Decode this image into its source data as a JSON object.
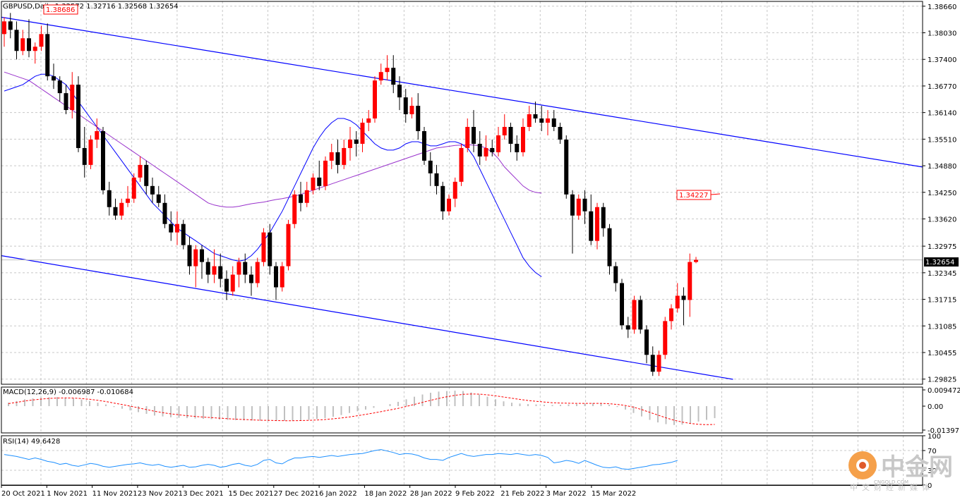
{
  "chart_data": [
    {
      "type": "candlestick",
      "title": "GBPUSD,Daily",
      "ohlc_readout": "1.32572 1.32716 1.32568 1.32654",
      "top_left_tag": "1.38686",
      "current_price_label": "1.32654",
      "ma_price_label": "1.34227",
      "ylim": [
        1.2982,
        1.3869
      ],
      "y_ticks": [
        "1.38660",
        "1.38030",
        "1.37400",
        "1.36770",
        "1.36140",
        "1.35510",
        "1.34880",
        "1.34250",
        "1.33620",
        "1.32975",
        "1.32345",
        "1.31715",
        "1.31085",
        "1.30455",
        "1.29825"
      ],
      "x_ticks": [
        "20 Oct 2021",
        "1 Nov 2021",
        "11 Nov 2021",
        "23 Nov 2021",
        "3 Dec 2021",
        "15 Dec 2021",
        "27 Dec 2021",
        "6 Jan 2022",
        "18 Jan 2022",
        "28 Jan 2022",
        "9 Feb 2022",
        "21 Feb 2022",
        "3 Mar 2022",
        "15 Mar 2022"
      ],
      "candles": [
        [
          1.38,
          1.384,
          1.377,
          1.383
        ],
        [
          1.383,
          1.385,
          1.379,
          1.381
        ],
        [
          1.381,
          1.383,
          1.374,
          1.376
        ],
        [
          1.376,
          1.381,
          1.375,
          1.379
        ],
        [
          1.379,
          1.3835,
          1.3745,
          1.376
        ],
        [
          1.376,
          1.378,
          1.373,
          1.377
        ],
        [
          1.377,
          1.382,
          1.376,
          1.38
        ],
        [
          1.38,
          1.3825,
          1.369,
          1.37
        ],
        [
          1.37,
          1.373,
          1.367,
          1.369
        ],
        [
          1.369,
          1.37,
          1.364,
          1.366
        ],
        [
          1.366,
          1.368,
          1.361,
          1.362
        ],
        [
          1.362,
          1.371,
          1.36,
          1.368
        ],
        [
          1.368,
          1.37,
          1.352,
          1.353
        ],
        [
          1.353,
          1.358,
          1.346,
          1.349
        ],
        [
          1.349,
          1.356,
          1.348,
          1.355
        ],
        [
          1.355,
          1.36,
          1.353,
          1.357
        ],
        [
          1.357,
          1.358,
          1.342,
          1.343
        ],
        [
          1.343,
          1.345,
          1.337,
          1.339
        ],
        [
          1.339,
          1.341,
          1.336,
          1.337
        ],
        [
          1.337,
          1.341,
          1.336,
          1.34
        ],
        [
          1.34,
          1.344,
          1.339,
          1.341
        ],
        [
          1.341,
          1.347,
          1.34,
          1.346
        ],
        [
          1.346,
          1.351,
          1.345,
          1.349
        ],
        [
          1.349,
          1.35,
          1.342,
          1.344
        ],
        [
          1.344,
          1.346,
          1.34,
          1.342
        ],
        [
          1.342,
          1.344,
          1.339,
          1.34
        ],
        [
          1.34,
          1.342,
          1.334,
          1.335
        ],
        [
          1.335,
          1.338,
          1.331,
          1.333
        ],
        [
          1.333,
          1.338,
          1.33,
          1.335
        ],
        [
          1.335,
          1.336,
          1.329,
          1.33
        ],
        [
          1.33,
          1.332,
          1.323,
          1.325
        ],
        [
          1.325,
          1.33,
          1.32,
          1.329
        ],
        [
          1.329,
          1.33,
          1.322,
          1.326
        ],
        [
          1.326,
          1.327,
          1.321,
          1.323
        ],
        [
          1.323,
          1.329,
          1.321,
          1.325
        ],
        [
          1.325,
          1.328,
          1.32,
          1.322
        ],
        [
          1.322,
          1.324,
          1.317,
          1.319
        ],
        [
          1.319,
          1.325,
          1.318,
          1.323
        ],
        [
          1.323,
          1.327,
          1.32,
          1.326
        ],
        [
          1.326,
          1.328,
          1.321,
          1.323
        ],
        [
          1.323,
          1.325,
          1.318,
          1.321
        ],
        [
          1.321,
          1.327,
          1.32,
          1.326
        ],
        [
          1.326,
          1.334,
          1.325,
          1.333
        ],
        [
          1.333,
          1.335,
          1.323,
          1.325
        ],
        [
          1.325,
          1.326,
          1.317,
          1.32
        ],
        [
          1.32,
          1.326,
          1.319,
          1.325
        ],
        [
          1.325,
          1.336,
          1.324,
          1.335
        ],
        [
          1.335,
          1.343,
          1.334,
          1.342
        ],
        [
          1.342,
          1.345,
          1.338,
          1.34
        ],
        [
          1.34,
          1.345,
          1.339,
          1.343
        ],
        [
          1.343,
          1.347,
          1.342,
          1.346
        ],
        [
          1.346,
          1.35,
          1.343,
          1.344
        ],
        [
          1.344,
          1.351,
          1.343,
          1.35
        ],
        [
          1.35,
          1.354,
          1.348,
          1.352
        ],
        [
          1.352,
          1.355,
          1.347,
          1.349
        ],
        [
          1.349,
          1.355,
          1.348,
          1.353
        ],
        [
          1.353,
          1.358,
          1.35,
          1.355
        ],
        [
          1.355,
          1.357,
          1.351,
          1.354
        ],
        [
          1.354,
          1.36,
          1.352,
          1.359
        ],
        [
          1.359,
          1.362,
          1.357,
          1.36
        ],
        [
          1.36,
          1.37,
          1.359,
          1.369
        ],
        [
          1.369,
          1.373,
          1.368,
          1.371
        ],
        [
          1.371,
          1.375,
          1.369,
          1.372
        ],
        [
          1.372,
          1.375,
          1.366,
          1.368
        ],
        [
          1.368,
          1.37,
          1.362,
          1.365
        ],
        [
          1.365,
          1.367,
          1.359,
          1.361
        ],
        [
          1.361,
          1.365,
          1.36,
          1.363
        ],
        [
          1.363,
          1.366,
          1.355,
          1.357
        ],
        [
          1.357,
          1.358,
          1.349,
          1.35
        ],
        [
          1.35,
          1.352,
          1.344,
          1.347
        ],
        [
          1.347,
          1.349,
          1.342,
          1.344
        ],
        [
          1.344,
          1.345,
          1.336,
          1.338
        ],
        [
          1.338,
          1.342,
          1.337,
          1.341
        ],
        [
          1.341,
          1.346,
          1.339,
          1.345
        ],
        [
          1.345,
          1.354,
          1.344,
          1.353
        ],
        [
          1.353,
          1.36,
          1.352,
          1.358
        ],
        [
          1.358,
          1.362,
          1.352,
          1.354
        ],
        [
          1.354,
          1.357,
          1.349,
          1.351
        ],
        [
          1.351,
          1.356,
          1.35,
          1.353
        ],
        [
          1.353,
          1.355,
          1.351,
          1.352
        ],
        [
          1.352,
          1.358,
          1.351,
          1.356
        ],
        [
          1.356,
          1.361,
          1.355,
          1.358
        ],
        [
          1.358,
          1.359,
          1.352,
          1.354
        ],
        [
          1.354,
          1.356,
          1.35,
          1.352
        ],
        [
          1.352,
          1.36,
          1.351,
          1.358
        ],
        [
          1.358,
          1.363,
          1.357,
          1.361
        ],
        [
          1.361,
          1.364,
          1.359,
          1.36
        ],
        [
          1.36,
          1.363,
          1.357,
          1.359
        ],
        [
          1.359,
          1.362,
          1.356,
          1.36
        ],
        [
          1.36,
          1.362,
          1.357,
          1.358
        ],
        [
          1.358,
          1.359,
          1.354,
          1.355
        ],
        [
          1.355,
          1.356,
          1.341,
          1.342
        ],
        [
          1.342,
          1.343,
          1.328,
          1.337
        ],
        [
          1.337,
          1.342,
          1.336,
          1.341
        ],
        [
          1.341,
          1.343,
          1.335,
          1.338
        ],
        [
          1.338,
          1.342,
          1.33,
          1.331
        ],
        [
          1.331,
          1.34,
          1.329,
          1.339
        ],
        [
          1.339,
          1.34,
          1.332,
          1.334
        ],
        [
          1.334,
          1.335,
          1.323,
          1.325
        ],
        [
          1.325,
          1.326,
          1.319,
          1.321
        ],
        [
          1.321,
          1.322,
          1.31,
          1.311
        ],
        [
          1.311,
          1.313,
          1.308,
          1.31
        ],
        [
          1.31,
          1.318,
          1.309,
          1.317
        ],
        [
          1.317,
          1.318,
          1.309,
          1.31
        ],
        [
          1.31,
          1.311,
          1.302,
          1.304
        ],
        [
          1.304,
          1.306,
          1.299,
          1.3
        ],
        [
          1.3,
          1.305,
          1.299,
          1.304
        ],
        [
          1.304,
          1.313,
          1.303,
          1.312
        ],
        [
          1.312,
          1.316,
          1.31,
          1.315
        ],
        [
          1.315,
          1.321,
          1.314,
          1.318
        ],
        [
          1.318,
          1.32,
          1.311,
          1.317
        ],
        [
          1.317,
          1.328,
          1.313,
          1.326
        ],
        [
          1.326,
          1.3272,
          1.3257,
          1.3265
        ]
      ],
      "ma_fast": [
        1.3665,
        1.367,
        1.3675,
        1.368,
        1.369,
        1.37,
        1.3705,
        1.3705,
        1.37,
        1.369,
        1.368,
        1.366,
        1.364,
        1.362,
        1.36,
        1.358,
        1.356,
        1.354,
        1.352,
        1.35,
        1.348,
        1.346,
        1.344,
        1.342,
        1.34,
        1.3385,
        1.337,
        1.3355,
        1.334,
        1.333,
        1.332,
        1.331,
        1.33,
        1.329,
        1.328,
        1.3275,
        1.327,
        1.3265,
        1.3262,
        1.3265,
        1.3275,
        1.329,
        1.331,
        1.333,
        1.3355,
        1.338,
        1.341,
        1.344,
        1.347,
        1.35,
        1.353,
        1.3555,
        1.3575,
        1.359,
        1.36,
        1.36,
        1.3595,
        1.3585,
        1.357,
        1.3555,
        1.354,
        1.353,
        1.3525,
        1.3525,
        1.353,
        1.354,
        1.3545,
        1.3545,
        1.354,
        1.3535,
        1.3535,
        1.354,
        1.3545,
        1.3545,
        1.354,
        1.353,
        1.351,
        1.348,
        1.345,
        1.342,
        1.339,
        1.336,
        1.333,
        1.33,
        1.327,
        1.325,
        1.3235,
        1.3225
      ],
      "ma_slow": [
        1.371,
        1.3705,
        1.37,
        1.3695,
        1.369,
        1.368,
        1.367,
        1.366,
        1.365,
        1.364,
        1.363,
        1.362,
        1.361,
        1.36,
        1.359,
        1.358,
        1.357,
        1.356,
        1.355,
        1.354,
        1.353,
        1.352,
        1.351,
        1.35,
        1.349,
        1.348,
        1.347,
        1.346,
        1.345,
        1.344,
        1.343,
        1.342,
        1.341,
        1.34,
        1.3395,
        1.3392,
        1.339,
        1.339,
        1.3392,
        1.3395,
        1.3398,
        1.34,
        1.3402,
        1.3405,
        1.3408,
        1.341,
        1.3413,
        1.3416,
        1.342,
        1.3425,
        1.343,
        1.3435,
        1.344,
        1.3445,
        1.345,
        1.3455,
        1.346,
        1.3465,
        1.347,
        1.3475,
        1.348,
        1.3485,
        1.349,
        1.3495,
        1.35,
        1.3505,
        1.351,
        1.3515,
        1.352,
        1.3525,
        1.353,
        1.3532,
        1.3534,
        1.3536,
        1.3537,
        1.3538,
        1.3537,
        1.3535,
        1.353,
        1.352,
        1.3505,
        1.3485,
        1.347,
        1.3455,
        1.344,
        1.343,
        1.3425,
        1.3423
      ],
      "colors": {
        "bull": "#ff0000",
        "bear": "#000000",
        "ma_fast": "#0000ff",
        "ma_slow": "#9932cc",
        "channel": "#0000ff",
        "bid_line": "#c0c0c0"
      }
    },
    {
      "type": "histogram",
      "label": "MACD(12,26,9) -0.006987 -0.010684",
      "ylim": [
        -0.01397,
        0.009472
      ],
      "y_ticks": [
        "0.009472",
        "0.00",
        "-0.01397"
      ],
      "histogram": [
        0.002,
        0.003,
        0.004,
        0.0045,
        0.005,
        0.0052,
        0.0053,
        0.005,
        0.0045,
        0.0038,
        0.003,
        0.002,
        0.001,
        -0.0005,
        -0.0015,
        -0.0025,
        -0.0035,
        -0.0045,
        -0.0055,
        -0.006,
        -0.0065,
        -0.0068,
        -0.007,
        -0.0072,
        -0.0074,
        -0.0076,
        -0.0078,
        -0.008,
        -0.0082,
        -0.0083,
        -0.0084,
        -0.0085,
        -0.0086,
        -0.0087,
        -0.0086,
        -0.0085,
        -0.0083,
        -0.008,
        -0.0075,
        -0.007,
        -0.0062,
        -0.0052,
        -0.004,
        -0.003,
        -0.002,
        -0.001,
        0.0,
        0.0012,
        0.0025,
        0.004,
        0.0055,
        0.0068,
        0.0078,
        0.0085,
        0.0088,
        0.009,
        0.0088,
        0.008,
        0.0068,
        0.0055,
        0.004,
        0.0028,
        0.002,
        0.0015,
        0.0012,
        0.001,
        0.0008,
        0.0007,
        0.0008,
        0.001,
        0.0012,
        0.0015,
        0.0018,
        0.0015,
        0.0008,
        -0.0005,
        -0.002,
        -0.004,
        -0.006,
        -0.008,
        -0.0095,
        -0.0105,
        -0.011,
        -0.0108,
        -0.01,
        -0.009,
        -0.008,
        -0.007
      ],
      "signal": [
        0.0015,
        0.0022,
        0.003,
        0.0036,
        0.0041,
        0.0045,
        0.0047,
        0.0048,
        0.0047,
        0.0044,
        0.004,
        0.0034,
        0.0027,
        0.0018,
        0.0009,
        0.0,
        -0.001,
        -0.002,
        -0.003,
        -0.0038,
        -0.0045,
        -0.0051,
        -0.0056,
        -0.006,
        -0.0064,
        -0.0067,
        -0.007,
        -0.0073,
        -0.0076,
        -0.0078,
        -0.008,
        -0.0082,
        -0.0083,
        -0.0084,
        -0.0085,
        -0.0085,
        -0.0084,
        -0.0083,
        -0.0081,
        -0.0078,
        -0.0074,
        -0.0069,
        -0.0063,
        -0.0056,
        -0.0048,
        -0.004,
        -0.0031,
        -0.0022,
        -0.0013,
        -0.0002,
        0.001,
        0.0022,
        0.0034,
        0.0045,
        0.0055,
        0.0063,
        0.0069,
        0.0071,
        0.007,
        0.0066,
        0.006,
        0.0053,
        0.0046,
        0.0039,
        0.0033,
        0.0028,
        0.0024,
        0.002,
        0.0018,
        0.0017,
        0.0016,
        0.0016,
        0.0016,
        0.0016,
        0.0014,
        0.001,
        0.0004,
        -0.0006,
        -0.002,
        -0.0036,
        -0.0052,
        -0.0068,
        -0.0082,
        -0.0093,
        -0.0101,
        -0.0106,
        -0.0108,
        -0.0107
      ],
      "colors": {
        "histogram": "#c0c0c0",
        "signal": "#ff0000"
      }
    },
    {
      "type": "line",
      "label": "RSI(14) 49.6428",
      "ylim": [
        0,
        100
      ],
      "y_ticks": [
        "100",
        "70",
        "30",
        "0"
      ],
      "rsi": [
        62,
        60,
        58,
        55,
        52,
        55,
        52,
        48,
        46,
        42,
        44,
        40,
        38,
        41,
        44,
        42,
        38,
        36,
        38,
        40,
        42,
        43,
        45,
        42,
        40,
        42,
        38,
        36,
        38,
        40,
        36,
        37,
        40,
        42,
        40,
        36,
        38,
        42,
        44,
        40,
        38,
        42,
        50,
        52,
        45,
        43,
        50,
        55,
        55,
        57,
        58,
        56,
        58,
        60,
        58,
        60,
        62,
        63,
        64,
        67,
        70,
        72,
        69,
        66,
        62,
        64,
        63,
        60,
        55,
        52,
        52,
        50,
        56,
        60,
        64,
        60,
        58,
        60,
        62,
        62,
        64,
        63,
        62,
        64,
        62,
        60,
        62,
        60,
        56,
        45,
        47,
        50,
        48,
        44,
        50,
        45,
        40,
        36,
        35,
        37,
        33,
        32,
        34,
        36,
        38,
        41,
        42,
        44,
        46,
        50
      ],
      "colors": {
        "rsi": "#1e90ff"
      }
    }
  ],
  "watermark": {
    "cn": "中金网",
    "en": "CNGOLD.COM",
    "sub": "中文财经新媒体"
  }
}
